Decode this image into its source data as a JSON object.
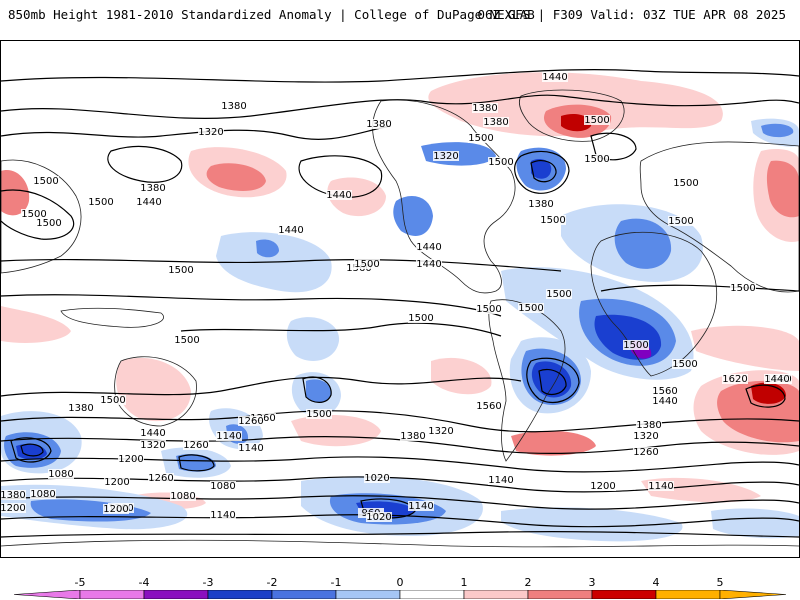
{
  "header": {
    "left_title": "850mb Height 1981-2010 Standardized Anomaly | College of DuPage NEXLAB",
    "right_title": "06Z GFS | F309 Valid: 03Z TUE APR 08 2025"
  },
  "map": {
    "contour_labels": [
      "1440",
      "1380",
      "1320",
      "1380",
      "1500",
      "1380",
      "1440",
      "1440",
      "1500",
      "1500",
      "1380",
      "1500",
      "1500",
      "1500",
      "1320",
      "1380",
      "1440",
      "1560",
      "1500",
      "1500",
      "1440",
      "1380",
      "1500",
      "1500",
      "1440",
      "1500",
      "1500",
      "1500",
      "1500",
      "1500",
      "1500",
      "1500",
      "1500",
      "1500",
      "1500",
      "1500",
      "1380",
      "1560",
      "1440",
      "1320",
      "1260",
      "1140",
      "1500",
      "1500",
      "1560",
      "1440",
      "1620",
      "1560",
      "1440",
      "1380",
      "1320",
      "1260",
      "1200",
      "1140",
      "1080",
      "1020",
      "960",
      "1080",
      "1020",
      "1140",
      "1200",
      "1260",
      "1320",
      "1380",
      "1260",
      "1200",
      "1200",
      "1140",
      "1260",
      "1080",
      "1200",
      "1140",
      "1080",
      "1380",
      "1200",
      "1140",
      "1200"
    ],
    "anomaly_colors": {
      "strong_positive": "#c00000",
      "positive": "#f08080",
      "weak_positive": "#fcd0d0",
      "weak_negative": "#c8dcf8",
      "negative": "#5a8ae8",
      "strong_negative": "#1a3fd0",
      "extreme_negative": "#8000c0"
    }
  },
  "colorbar": {
    "ticks": [
      "-5",
      "-4",
      "-3",
      "-2",
      "-1",
      "0",
      "1",
      "2",
      "3",
      "4",
      "5"
    ],
    "colors": [
      "#e879e8",
      "#8a0fbf",
      "#1b3fc7",
      "#4a73e0",
      "#a6c6f5",
      "#ffffff",
      "#fbc9c9",
      "#ef7f7f",
      "#cc0000",
      "#ffb000"
    ]
  }
}
